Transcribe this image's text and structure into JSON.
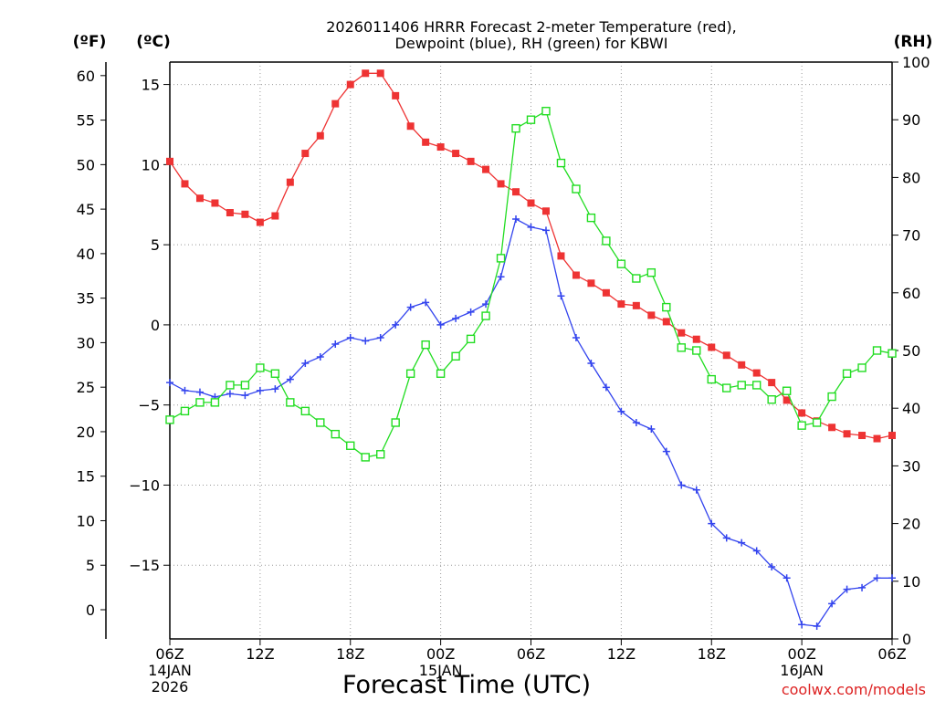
{
  "chart_data": {
    "type": "line",
    "title_line1": "2026011406 HRRR Forecast 2-meter Temperature (red),",
    "title_line2": "Dewpoint (blue), RH (green) for KBWI",
    "xlabel": "Forecast Time (UTC)",
    "credit": "coolwx.com/models",
    "axes": {
      "fahrenheit_label": "(ºF)",
      "celsius_label": "(ºC)",
      "rh_label": "(RH)",
      "x_range_hours": [
        0,
        48
      ],
      "celsius_range": [
        -19.6,
        16.4
      ],
      "rh_range": [
        0,
        100
      ],
      "fahrenheit_ticks": [
        0,
        5,
        10,
        15,
        20,
        25,
        30,
        35,
        40,
        45,
        50,
        55,
        60
      ],
      "celsius_ticks": [
        -15,
        -10,
        -5,
        0,
        5,
        10,
        15
      ],
      "rh_ticks": [
        0,
        10,
        20,
        30,
        40,
        50,
        60,
        70,
        80,
        90,
        100
      ],
      "celsius_tick_labels": [
        "−15",
        "−10",
        "−5",
        "0",
        "5",
        "10",
        "15"
      ],
      "x_ticks": [
        {
          "hour": 0,
          "label": "06Z",
          "sub1": "14JAN",
          "sub2": "2026"
        },
        {
          "hour": 6,
          "label": "12Z",
          "sub1": "",
          "sub2": ""
        },
        {
          "hour": 12,
          "label": "18Z",
          "sub1": "",
          "sub2": ""
        },
        {
          "hour": 18,
          "label": "00Z",
          "sub1": "15JAN",
          "sub2": ""
        },
        {
          "hour": 24,
          "label": "06Z",
          "sub1": "",
          "sub2": ""
        },
        {
          "hour": 30,
          "label": "12Z",
          "sub1": "",
          "sub2": ""
        },
        {
          "hour": 36,
          "label": "18Z",
          "sub1": "",
          "sub2": ""
        },
        {
          "hour": 42,
          "label": "00Z",
          "sub1": "16JAN",
          "sub2": ""
        },
        {
          "hour": 48,
          "label": "06Z",
          "sub1": "",
          "sub2": ""
        }
      ]
    },
    "x": [
      0,
      1,
      2,
      3,
      4,
      5,
      6,
      7,
      8,
      9,
      10,
      11,
      12,
      13,
      14,
      15,
      16,
      17,
      18,
      19,
      20,
      21,
      22,
      23,
      24,
      25,
      26,
      27,
      28,
      29,
      30,
      31,
      32,
      33,
      34,
      35,
      36,
      37,
      38,
      39,
      40,
      41,
      42,
      43,
      44,
      45,
      46,
      47,
      48
    ],
    "series": [
      {
        "name": "Temperature",
        "unit": "C",
        "color": "#ee3333",
        "marker": "filled-square",
        "values": [
          10.2,
          8.8,
          7.9,
          7.6,
          7.0,
          6.9,
          6.4,
          6.8,
          8.9,
          10.7,
          11.8,
          13.8,
          15.0,
          15.7,
          15.7,
          14.3,
          12.4,
          11.4,
          11.1,
          10.7,
          10.2,
          9.7,
          8.8,
          8.3,
          7.6,
          7.1,
          4.3,
          3.1,
          2.6,
          2.0,
          1.3,
          1.2,
          0.6,
          0.2,
          -0.5,
          -0.9,
          -1.4,
          -1.9,
          -2.5,
          -3.0,
          -3.6,
          -4.7,
          -5.5,
          -6.0,
          -6.4,
          -6.8,
          -6.9,
          -7.1,
          -6.9
        ]
      },
      {
        "name": "Dewpoint",
        "unit": "C",
        "color": "#3344ee",
        "marker": "plus",
        "values": [
          -3.6,
          -4.1,
          -4.2,
          -4.5,
          -4.3,
          -4.4,
          -4.1,
          -4.0,
          -3.4,
          -2.4,
          -2.0,
          -1.2,
          -0.8,
          -1.0,
          -0.8,
          0.0,
          1.1,
          1.4,
          0.0,
          0.4,
          0.8,
          1.3,
          3.0,
          6.6,
          6.1,
          5.9,
          1.8,
          -0.8,
          -2.4,
          -3.9,
          -5.4,
          -6.1,
          -6.5,
          -7.9,
          -10.0,
          -10.3,
          -12.4,
          -13.3,
          -13.6,
          -14.1,
          -15.1,
          -15.8,
          -18.7,
          -18.8,
          -17.4,
          -16.5,
          -16.4,
          -15.8,
          -15.8
        ]
      },
      {
        "name": "RH",
        "unit": "%",
        "color": "#22dd22",
        "marker": "open-square",
        "values": [
          38.0,
          39.5,
          41.0,
          41.0,
          44.0,
          44.0,
          47.0,
          46.0,
          41.0,
          39.5,
          37.5,
          35.5,
          33.5,
          31.5,
          32.0,
          37.5,
          46.0,
          51.0,
          46.0,
          49.0,
          52.0,
          56.0,
          66.0,
          88.5,
          90.0,
          91.5,
          82.5,
          78.0,
          73.0,
          69.0,
          65.0,
          62.5,
          63.5,
          57.5,
          50.5,
          50.0,
          45.0,
          43.5,
          44.0,
          44.0,
          41.5,
          43.0,
          37.0,
          37.5,
          42.0,
          46.0,
          47.0,
          50.0,
          49.5
        ]
      }
    ]
  }
}
